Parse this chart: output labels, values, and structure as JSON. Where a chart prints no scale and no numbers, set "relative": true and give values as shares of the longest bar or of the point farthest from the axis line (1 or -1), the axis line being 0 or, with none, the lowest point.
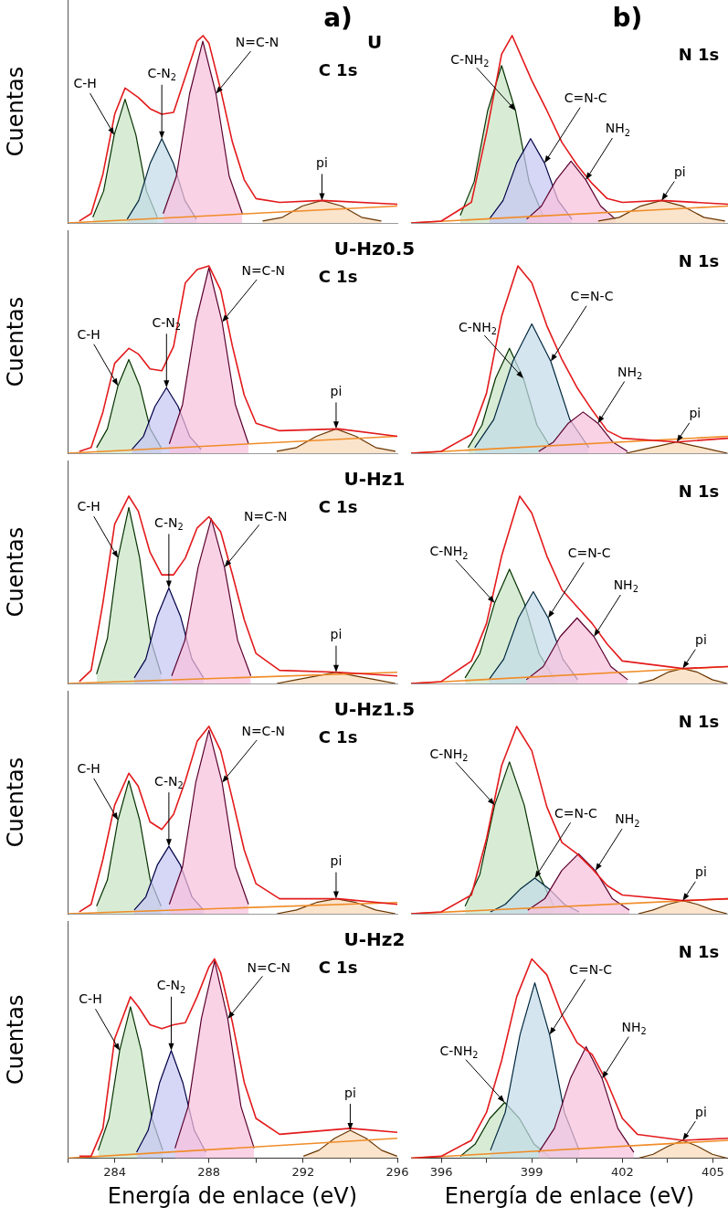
{
  "chart_data": [
    {
      "type": "area",
      "relative": true,
      "title": "a)",
      "subtitle": "U",
      "ylabel": "Cuentas",
      "xlim": [
        282,
        296
      ],
      "tick_labels": false,
      "annotations": [
        "C 1s",
        {
          "text": "C-H",
          "x": 283.98,
          "y": 0.47
        },
        {
          "text": "C-N$_{2}$",
          "x": 286,
          "y": 0.45
        },
        {
          "text": "N=C-N",
          "x": 288.3,
          "y": 0.69
        },
        {
          "text": "pi",
          "x": 292.8,
          "y": 0.12
        }
      ],
      "series": [
        {
          "type": "area",
          "color": "#c9e4c5",
          "x": [
            283.07,
            283.53,
            283.98,
            284.44,
            284.9,
            285.35,
            285.81
          ],
          "values": [
            0.03,
            0.17,
            0.47,
            0.66,
            0.47,
            0.17,
            0.03
          ]
        },
        {
          "type": "area",
          "color": "#c3dbe9",
          "x": [
            284.53,
            285.02,
            285.51,
            286,
            286.49,
            286.98,
            287.47
          ],
          "values": [
            0.02,
            0.12,
            0.32,
            0.45,
            0.32,
            0.12,
            0.02
          ]
        },
        {
          "type": "area",
          "color": "#f8c0dc",
          "x": [
            286.06,
            286.62,
            287.18,
            287.74,
            288.3,
            288.86,
            289.42
          ],
          "values": [
            0.05,
            0.25,
            0.69,
            0.97,
            0.69,
            0.25,
            0.05
          ]
        },
        {
          "type": "area",
          "color": "#f9d9b8",
          "x": [
            290.28,
            291.12,
            291.96,
            292.8,
            293.64,
            294.48,
            295.32
          ],
          "values": [
            0.01,
            0.03,
            0.09,
            0.12,
            0.09,
            0.03,
            0.01
          ]
        },
        {
          "type": "line",
          "color": "#f08c28",
          "x": [
            282,
            296
          ],
          "values": [
            0,
            0.09
          ]
        },
        {
          "type": "line",
          "color": "#e31a1c",
          "x": [
            282.5,
            283,
            283.5,
            284,
            284.44,
            285,
            285.5,
            286,
            286.5,
            287,
            287.5,
            287.75,
            288,
            288.5,
            289,
            289.5,
            290,
            291,
            292.8,
            296
          ],
          "values": [
            0.01,
            0.05,
            0.26,
            0.58,
            0.72,
            0.67,
            0.61,
            0.58,
            0.59,
            0.78,
            0.97,
            1,
            0.96,
            0.71,
            0.43,
            0.23,
            0.13,
            0.11,
            0.12,
            0.1
          ]
        }
      ]
    },
    {
      "type": "area",
      "relative": true,
      "title": "b)",
      "xlim": [
        395,
        405.5
      ],
      "tick_labels": false,
      "annotations": [
        "N 1s",
        {
          "text": "C-NH$_{2}$",
          "x": 398.46,
          "y": 0.6
        },
        {
          "text": "C=N-C",
          "x": 399.42,
          "y": 0.32
        },
        {
          "text": "NH$_{2}$",
          "x": 400.79,
          "y": 0.23
        },
        {
          "text": "pi",
          "x": 403.3,
          "y": 0.12
        }
      ],
      "series": [
        {
          "type": "area",
          "color": "#c9e4c5",
          "x": [
            396.63,
            397.09,
            397.54,
            398,
            398.46,
            398.91,
            399.37
          ],
          "values": [
            0.04,
            0.22,
            0.6,
            0.84,
            0.6,
            0.22,
            0.04
          ]
        },
        {
          "type": "area",
          "color": "#c6c6f2",
          "x": [
            397.59,
            398.05,
            398.5,
            398.96,
            399.42,
            399.87,
            400.33
          ],
          "values": [
            0.02,
            0.12,
            0.32,
            0.45,
            0.32,
            0.12,
            0.02
          ]
        },
        {
          "type": "area",
          "color": "#f8c0dc",
          "x": [
            398.83,
            399.32,
            399.81,
            400.3,
            400.79,
            401.28,
            401.77
          ],
          "values": [
            0.02,
            0.09,
            0.23,
            0.33,
            0.23,
            0.09,
            0.02
          ]
        },
        {
          "type": "area",
          "color": "#f9d9b8",
          "x": [
            401.2,
            401.9,
            402.6,
            403.3,
            404,
            404.7,
            405.4
          ],
          "values": [
            0.01,
            0.03,
            0.09,
            0.12,
            0.09,
            0.03,
            0.01
          ]
        },
        {
          "type": "line",
          "color": "#f08c28",
          "x": [
            395,
            405.5
          ],
          "values": [
            0,
            0.09
          ]
        },
        {
          "type": "line",
          "color": "#e31a1c",
          "x": [
            395,
            396,
            397,
            397.5,
            398,
            398.35,
            399,
            399.5,
            400,
            400.5,
            401,
            401.5,
            402,
            403.3,
            405.5
          ],
          "values": [
            0,
            0.01,
            0.11,
            0.48,
            0.9,
            1,
            0.76,
            0.6,
            0.43,
            0.31,
            0.21,
            0.13,
            0.11,
            0.12,
            0.1
          ]
        }
      ]
    },
    {
      "type": "area",
      "relative": true,
      "subtitle": "U-Hz0.5",
      "ylabel": "Cuentas",
      "xlim": [
        282,
        296
      ],
      "tick_labels": false,
      "annotations": [
        "C 1s",
        {
          "text": "C-H",
          "x": 284.14,
          "y": 0.36
        },
        {
          "text": "C-N$_{2}$",
          "x": 286.2,
          "y": 0.35
        },
        {
          "text": "N=C-N",
          "x": 288.56,
          "y": 0.7
        },
        {
          "text": "pi",
          "x": 293.4,
          "y": 0.13
        }
      ],
      "series": [
        {
          "type": "area",
          "color": "#c9e4c5",
          "x": [
            283.23,
            283.69,
            284.14,
            284.6,
            285.06,
            285.51,
            285.97
          ],
          "values": [
            0.03,
            0.13,
            0.36,
            0.5,
            0.36,
            0.13,
            0.03
          ]
        },
        {
          "type": "area",
          "color": "#c6c6f2",
          "x": [
            284.73,
            285.22,
            285.71,
            286.2,
            286.69,
            287.18,
            287.67
          ],
          "values": [
            0.02,
            0.09,
            0.25,
            0.35,
            0.25,
            0.09,
            0.02
          ]
        },
        {
          "type": "area",
          "color": "#f8c0dc",
          "x": [
            286.32,
            286.88,
            287.44,
            288,
            288.56,
            289.12,
            289.68
          ],
          "values": [
            0.05,
            0.26,
            0.7,
            0.99,
            0.7,
            0.26,
            0.05
          ]
        },
        {
          "type": "area",
          "color": "#f9d9b8",
          "x": [
            290.88,
            291.72,
            292.56,
            293.4,
            294.24,
            295.08,
            295.92
          ],
          "values": [
            0.01,
            0.03,
            0.09,
            0.13,
            0.09,
            0.03,
            0.01
          ]
        },
        {
          "type": "line",
          "color": "#f08c28",
          "x": [
            282,
            296
          ],
          "values": [
            0,
            0.09
          ]
        },
        {
          "type": "line",
          "color": "#e31a1c",
          "x": [
            282.5,
            283,
            283.5,
            284,
            284.6,
            285,
            285.5,
            286,
            286.5,
            287,
            287.5,
            288,
            288.5,
            289,
            289.5,
            290,
            291,
            293.5,
            296
          ],
          "values": [
            0.01,
            0.03,
            0.22,
            0.48,
            0.56,
            0.53,
            0.45,
            0.44,
            0.57,
            0.91,
            0.98,
            1,
            0.87,
            0.57,
            0.31,
            0.16,
            0.12,
            0.13,
            0.09
          ]
        }
      ]
    },
    {
      "type": "area",
      "relative": true,
      "xlim": [
        395,
        405.5
      ],
      "tick_labels": false,
      "annotations": [
        "N 1s",
        {
          "text": "C-NH$_{2}$",
          "x": 398.72,
          "y": 0.4
        },
        {
          "text": "C=N-C",
          "x": 399.63,
          "y": 0.49
        },
        {
          "text": "NH$_{2}$",
          "x": 401.19,
          "y": 0.16
        },
        {
          "text": "pi",
          "x": 403.8,
          "y": 0.06
        }
      ],
      "series": [
        {
          "type": "area",
          "color": "#c9e4c5",
          "x": [
            396.89,
            397.35,
            397.8,
            398.26,
            398.72,
            399.17,
            399.63
          ],
          "values": [
            0.03,
            0.15,
            0.4,
            0.56,
            0.4,
            0.15,
            0.03
          ]
        },
        {
          "type": "area",
          "color": "#c3dbe9",
          "x": [
            397.11,
            397.74,
            398.37,
            399,
            399.63,
            400.26,
            400.89
          ],
          "values": [
            0.03,
            0.18,
            0.49,
            0.69,
            0.49,
            0.18,
            0.03
          ]
        },
        {
          "type": "area",
          "color": "#f8c0dc",
          "x": [
            399.23,
            399.72,
            400.21,
            400.7,
            401.19,
            401.68,
            402.17
          ],
          "values": [
            0.01,
            0.06,
            0.16,
            0.22,
            0.16,
            0.06,
            0.01
          ]
        },
        {
          "type": "area",
          "color": "#f9d9b8",
          "x": [
            402.12,
            402.68,
            403.24,
            403.8,
            404.36,
            404.92,
            405.48
          ],
          "values": [
            0,
            0.02,
            0.04,
            0.06,
            0.04,
            0.02,
            0
          ]
        },
        {
          "type": "line",
          "color": "#f08c28",
          "x": [
            395,
            405.5
          ],
          "values": [
            0,
            0.09
          ]
        },
        {
          "type": "line",
          "color": "#e31a1c",
          "x": [
            395,
            396,
            397,
            397.5,
            398,
            398.54,
            399,
            399.5,
            400,
            400.5,
            401,
            401.5,
            402,
            403.8,
            405.5
          ],
          "values": [
            0,
            0.01,
            0.1,
            0.32,
            0.73,
            1,
            0.91,
            0.68,
            0.5,
            0.35,
            0.23,
            0.12,
            0.08,
            0.06,
            0.08
          ]
        }
      ]
    },
    {
      "type": "area",
      "relative": true,
      "subtitle": "U-Hz1",
      "ylabel": "Cuentas",
      "xlim": [
        282,
        296
      ],
      "tick_labels": false,
      "annotations": [
        "C 1s",
        {
          "text": "C-H",
          "x": 284.14,
          "y": 0.67
        },
        {
          "text": "C-N$_{2}$",
          "x": 286.3,
          "y": 0.51
        },
        {
          "text": "N=C-N",
          "x": 288.66,
          "y": 0.62
        },
        {
          "text": "pi",
          "x": 293.4,
          "y": 0.06
        }
      ],
      "series": [
        {
          "type": "area",
          "color": "#c9e4c5",
          "x": [
            283.23,
            283.69,
            284.14,
            284.6,
            285.06,
            285.51,
            285.97
          ],
          "values": [
            0.05,
            0.24,
            0.67,
            0.94,
            0.67,
            0.24,
            0.05
          ]
        },
        {
          "type": "area",
          "color": "#c6c6f2",
          "x": [
            284.83,
            285.32,
            285.81,
            286.3,
            286.79,
            287.28,
            287.77
          ],
          "values": [
            0.03,
            0.13,
            0.36,
            0.51,
            0.36,
            0.13,
            0.03
          ]
        },
        {
          "type": "area",
          "color": "#f8c0dc",
          "x": [
            286.42,
            286.98,
            287.54,
            288.1,
            288.66,
            289.22,
            289.78
          ],
          "values": [
            0.04,
            0.23,
            0.62,
            0.88,
            0.62,
            0.23,
            0.04
          ]
        },
        {
          "type": "area",
          "color": "#f9d9b8",
          "x": [
            290.88,
            291.72,
            292.56,
            293.4,
            294.24,
            295.08,
            295.92
          ],
          "values": [
            0,
            0.02,
            0.04,
            0.06,
            0.04,
            0.02,
            0
          ]
        },
        {
          "type": "line",
          "color": "#f08c28",
          "x": [
            282,
            296
          ],
          "values": [
            0,
            0.06
          ]
        },
        {
          "type": "line",
          "color": "#e31a1c",
          "x": [
            282.5,
            283,
            283.5,
            284,
            284.6,
            285,
            285.5,
            286,
            286.5,
            287,
            287.5,
            288,
            288.5,
            289,
            289.5,
            290,
            291,
            293.5,
            296
          ],
          "values": [
            0.01,
            0.07,
            0.43,
            0.85,
            1,
            0.92,
            0.7,
            0.58,
            0.58,
            0.67,
            0.83,
            0.89,
            0.81,
            0.58,
            0.34,
            0.16,
            0.07,
            0.06,
            0.04
          ]
        }
      ]
    },
    {
      "type": "area",
      "relative": true,
      "xlim": [
        395,
        405.5
      ],
      "tick_labels": false,
      "annotations": [
        "N 1s",
        {
          "text": "C-NH$_{2}$",
          "x": 397.77,
          "y": 0.43
        },
        {
          "text": "C=N-C",
          "x": 399.54,
          "y": 0.35
        },
        {
          "text": "NH$_{2}$",
          "x": 401.06,
          "y": 0.25
        },
        {
          "text": "pi",
          "x": 404,
          "y": 0.08
        }
      ],
      "series": [
        {
          "type": "area",
          "color": "#c9e4c5",
          "x": [
            396.79,
            397.28,
            397.77,
            398.26,
            398.75,
            399.24,
            399.73
          ],
          "values": [
            0.03,
            0.16,
            0.43,
            0.61,
            0.43,
            0.16,
            0.03
          ]
        },
        {
          "type": "area",
          "color": "#c3dbe9",
          "x": [
            397.58,
            398.07,
            398.56,
            399.05,
            399.54,
            400.03,
            400.52
          ],
          "values": [
            0.02,
            0.13,
            0.35,
            0.49,
            0.35,
            0.13,
            0.02
          ]
        },
        {
          "type": "area",
          "color": "#f8c0dc",
          "x": [
            398.82,
            399.38,
            399.94,
            400.5,
            401.06,
            401.62,
            402.18
          ],
          "values": [
            0.02,
            0.09,
            0.25,
            0.35,
            0.25,
            0.09,
            0.02
          ]
        },
        {
          "type": "area",
          "color": "#f9d9b8",
          "x": [
            402.53,
            403.02,
            403.51,
            404,
            404.49,
            404.98,
            405.47
          ],
          "values": [
            0,
            0.02,
            0.06,
            0.08,
            0.06,
            0.02,
            0
          ]
        },
        {
          "type": "line",
          "color": "#f08c28",
          "x": [
            395,
            405.5
          ],
          "values": [
            0,
            0.09
          ]
        },
        {
          "type": "line",
          "color": "#e31a1c",
          "x": [
            395,
            396,
            397,
            397.5,
            398,
            398.6,
            399,
            399.5,
            400,
            400.5,
            401,
            401.5,
            402,
            404,
            405.5
          ],
          "values": [
            0,
            0.01,
            0.12,
            0.32,
            0.68,
            1,
            0.91,
            0.68,
            0.5,
            0.41,
            0.32,
            0.21,
            0.12,
            0.08,
            0.09
          ]
        }
      ]
    },
    {
      "type": "area",
      "relative": true,
      "subtitle": "U-Hz1.5",
      "ylabel": "Cuentas",
      "xlim": [
        282,
        296
      ],
      "tick_labels": false,
      "annotations": [
        "C 1s",
        {
          "text": "C-H",
          "x": 284.14,
          "y": 0.5
        },
        {
          "text": "C-N$_{2}$",
          "x": 286.3,
          "y": 0.36
        },
        {
          "text": "N=C-N",
          "x": 288.56,
          "y": 0.7
        },
        {
          "text": "pi",
          "x": 293.4,
          "y": 0.08
        }
      ],
      "series": [
        {
          "type": "area",
          "color": "#c9e4c5",
          "x": [
            283.23,
            283.69,
            284.14,
            284.6,
            285.06,
            285.51,
            285.97
          ],
          "values": [
            0.04,
            0.18,
            0.5,
            0.71,
            0.5,
            0.18,
            0.04
          ]
        },
        {
          "type": "area",
          "color": "#c6c6f2",
          "x": [
            284.83,
            285.32,
            285.81,
            286.3,
            286.79,
            287.28,
            287.77
          ],
          "values": [
            0.02,
            0.09,
            0.26,
            0.36,
            0.26,
            0.09,
            0.02
          ]
        },
        {
          "type": "area",
          "color": "#f8c0dc",
          "x": [
            286.32,
            286.88,
            287.44,
            288,
            288.56,
            289.12,
            289.68
          ],
          "values": [
            0.05,
            0.25,
            0.7,
            0.98,
            0.7,
            0.25,
            0.05
          ]
        },
        {
          "type": "area",
          "color": "#f9d9b8",
          "x": [
            290.88,
            291.72,
            292.56,
            293.4,
            294.24,
            295.08,
            295.92
          ],
          "values": [
            0,
            0.02,
            0.06,
            0.08,
            0.06,
            0.02,
            0
          ]
        },
        {
          "type": "line",
          "color": "#f08c28",
          "x": [
            282,
            296
          ],
          "values": [
            0,
            0.06
          ]
        },
        {
          "type": "line",
          "color": "#e31a1c",
          "x": [
            282.5,
            283,
            283.5,
            284,
            284.6,
            285,
            285.5,
            286,
            286.5,
            287,
            287.5,
            288,
            288.5,
            289,
            289.5,
            290,
            291,
            293.5,
            296
          ],
          "values": [
            0.01,
            0.05,
            0.29,
            0.58,
            0.75,
            0.68,
            0.49,
            0.45,
            0.53,
            0.71,
            0.92,
            1,
            0.87,
            0.61,
            0.34,
            0.16,
            0.08,
            0.08,
            0.05
          ]
        }
      ]
    },
    {
      "type": "area",
      "relative": true,
      "xlim": [
        395,
        405.5
      ],
      "tick_labels": false,
      "annotations": [
        "N 1s",
        {
          "text": "C-NH$_{2}$",
          "x": 397.77,
          "y": 0.58
        },
        {
          "text": "C=N-C",
          "x": 399.1,
          "y": 0.19
        },
        {
          "text": "NH$_{2}$",
          "x": 401.11,
          "y": 0.23
        },
        {
          "text": "pi",
          "x": 404,
          "y": 0.07
        }
      ],
      "series": [
        {
          "type": "area",
          "color": "#c9e4c5",
          "x": [
            396.79,
            397.28,
            397.77,
            398.26,
            398.75,
            399.24,
            399.73
          ],
          "values": [
            0.04,
            0.21,
            0.58,
            0.81,
            0.58,
            0.21,
            0.04
          ]
        },
        {
          "type": "area",
          "color": "#c3dbe9",
          "x": [
            397.63,
            398.12,
            398.61,
            399.1,
            399.59,
            400.08,
            400.57
          ],
          "values": [
            0.01,
            0.05,
            0.13,
            0.19,
            0.13,
            0.05,
            0.01
          ]
        },
        {
          "type": "area",
          "color": "#f8c0dc",
          "x": [
            398.87,
            399.43,
            399.99,
            400.55,
            401.11,
            401.67,
            402.23
          ],
          "values": [
            0.02,
            0.08,
            0.23,
            0.32,
            0.23,
            0.08,
            0.02
          ]
        },
        {
          "type": "area",
          "color": "#f9d9b8",
          "x": [
            402.53,
            403.02,
            403.51,
            404,
            404.49,
            404.98,
            405.47
          ],
          "values": [
            0,
            0.02,
            0.05,
            0.07,
            0.05,
            0.02,
            0
          ]
        },
        {
          "type": "line",
          "color": "#f08c28",
          "x": [
            395,
            405.5
          ],
          "values": [
            0,
            0.08
          ]
        },
        {
          "type": "line",
          "color": "#e31a1c",
          "x": [
            395,
            396,
            397,
            397.5,
            398,
            398.5,
            399,
            399.5,
            400,
            400.5,
            401,
            401.5,
            402,
            404,
            405.5
          ],
          "values": [
            0,
            0.01,
            0.1,
            0.4,
            0.79,
            1,
            0.87,
            0.57,
            0.38,
            0.32,
            0.24,
            0.15,
            0.1,
            0.07,
            0.08
          ]
        }
      ]
    },
    {
      "type": "area",
      "relative": true,
      "subtitle": "U-Hz2",
      "ylabel": "Cuentas",
      "xlabel": "Energía de enlace (eV)",
      "xlim": [
        282,
        296
      ],
      "xticks": [
        {
          "value": 282,
          "label": null
        },
        284,
        {
          "value": 286,
          "label": null
        },
        288,
        {
          "value": 290,
          "label": null
        },
        292,
        {
          "value": 294,
          "label": null
        },
        296
      ],
      "tick_labels": "x",
      "annotations": [
        "C 1s",
        {
          "text": "C-H",
          "x": 284.21,
          "y": 0.54
        },
        {
          "text": "C-N$_{2}$",
          "x": 286.4,
          "y": 0.54
        },
        {
          "text": "N=C-N",
          "x": 288.8,
          "y": 0.7
        },
        {
          "text": "pi",
          "x": 294,
          "y": 0.14
        }
      ],
      "series": [
        {
          "type": "area",
          "color": "#c9e4c5",
          "x": [
            283.3,
            283.76,
            284.21,
            284.67,
            285.13,
            285.58,
            286.04
          ],
          "values": [
            0.04,
            0.2,
            0.54,
            0.76,
            0.54,
            0.2,
            0.04
          ]
        },
        {
          "type": "area",
          "color": "#c6c6f2",
          "x": [
            284.93,
            285.42,
            285.91,
            286.4,
            286.89,
            287.38,
            287.87
          ],
          "values": [
            0.03,
            0.14,
            0.38,
            0.54,
            0.38,
            0.14,
            0.03
          ]
        },
        {
          "type": "area",
          "color": "#f8c0dc",
          "x": [
            286.56,
            287.12,
            287.68,
            288.24,
            288.8,
            289.36,
            289.92
          ],
          "values": [
            0.05,
            0.26,
            0.7,
            0.99,
            0.7,
            0.26,
            0.05
          ]
        },
        {
          "type": "area",
          "color": "#f9d9b8",
          "x": [
            292.01,
            292.67,
            293.34,
            294,
            294.67,
            295.33,
            295.99
          ],
          "values": [
            0.01,
            0.04,
            0.1,
            0.14,
            0.1,
            0.04,
            0.01
          ]
        },
        {
          "type": "line",
          "color": "#f08c28",
          "x": [
            282,
            296
          ],
          "values": [
            0,
            0.1
          ]
        },
        {
          "type": "line",
          "color": "#e31a1c",
          "x": [
            282.5,
            283,
            283.5,
            284,
            284.67,
            285,
            285.5,
            286,
            286.5,
            287,
            287.5,
            288,
            288.24,
            288.5,
            289,
            289.5,
            290,
            291,
            294,
            296
          ],
          "values": [
            0.01,
            0.01,
            0.15,
            0.6,
            0.81,
            0.76,
            0.67,
            0.65,
            0.67,
            0.68,
            0.81,
            0.96,
            1,
            0.93,
            0.68,
            0.38,
            0.2,
            0.12,
            0.15,
            0.13
          ]
        }
      ]
    },
    {
      "type": "area",
      "relative": true,
      "xlabel": "Energía de enlace (eV)",
      "xlim": [
        395,
        405.5
      ],
      "xticks": [
        396,
        {
          "value": 397.5,
          "label": null
        },
        399,
        {
          "value": 400.5,
          "label": null
        },
        402,
        {
          "value": 403.5,
          "label": null
        },
        405
      ],
      "tick_labels": "x",
      "annotations": [
        "N 1s",
        {
          "text": "C-NH$_{2}$",
          "x": 398.1,
          "y": 0.28
        },
        {
          "text": "C=N-C",
          "x": 399.59,
          "y": 0.62
        },
        {
          "text": "NH$_{2}$",
          "x": 401.33,
          "y": 0.4
        },
        {
          "text": "pi",
          "x": 404,
          "y": 0.09
        }
      ],
      "series": [
        {
          "type": "area",
          "color": "#c9e4c5",
          "x": [
            396.63,
            397.12,
            397.61,
            398.1,
            398.59,
            399.08,
            399.57
          ],
          "values": [
            0.01,
            0.07,
            0.2,
            0.28,
            0.2,
            0.07,
            0.01
          ]
        },
        {
          "type": "area",
          "color": "#c3dbe9",
          "x": [
            397.63,
            398.12,
            398.61,
            399.1,
            399.59,
            400.08,
            400.57
          ],
          "values": [
            0.04,
            0.23,
            0.62,
            0.88,
            0.62,
            0.23,
            0.04
          ]
        },
        {
          "type": "area",
          "color": "#f8c0dc",
          "x": [
            399.23,
            399.75,
            400.28,
            400.8,
            401.33,
            401.85,
            402.38
          ],
          "values": [
            0.03,
            0.15,
            0.4,
            0.56,
            0.4,
            0.15,
            0.03
          ]
        },
        {
          "type": "area",
          "color": "#f9d9b8",
          "x": [
            402.53,
            403.02,
            403.51,
            404,
            404.49,
            404.98,
            405.47
          ],
          "values": [
            0,
            0.02,
            0.06,
            0.09,
            0.06,
            0.02,
            0
          ]
        },
        {
          "type": "line",
          "color": "#f08c28",
          "x": [
            395,
            405.5
          ],
          "values": [
            0,
            0.09
          ]
        },
        {
          "type": "line",
          "color": "#e31a1c",
          "x": [
            395,
            396,
            397,
            397.5,
            398,
            398.5,
            399,
            399.5,
            400,
            400.5,
            401,
            401.5,
            402,
            402.5,
            404,
            405.5
          ],
          "values": [
            0,
            0.01,
            0.09,
            0.23,
            0.49,
            0.81,
            1,
            0.92,
            0.72,
            0.58,
            0.52,
            0.38,
            0.2,
            0.12,
            0.09,
            0.1
          ]
        }
      ]
    }
  ]
}
